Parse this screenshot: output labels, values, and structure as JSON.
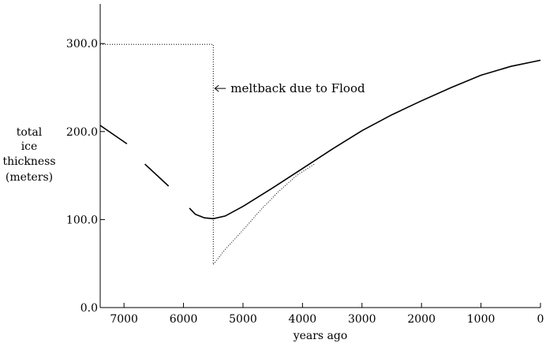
{
  "chart_data": {
    "type": "line",
    "title": "",
    "xlabel": "years ago",
    "ylabel_lines": [
      "total",
      "ice",
      "thickness",
      "(meters)"
    ],
    "xlim": [
      7400,
      0
    ],
    "ylim": [
      0,
      345
    ],
    "x_ticks": [
      7000,
      6000,
      5000,
      4000,
      3000,
      2000,
      1000,
      0
    ],
    "x_tick_labels": [
      "7000",
      "6000",
      "5000",
      "4000",
      "3000",
      "2000",
      "1000",
      "0"
    ],
    "y_ticks": [
      0,
      100,
      200,
      300
    ],
    "y_tick_labels": [
      "0.0",
      "100.0",
      "200.0",
      "300.0"
    ],
    "grid": false,
    "series": [
      {
        "style": "solid",
        "segments": [
          [
            [
              7400,
              207
            ],
            [
              6950,
              186
            ]
          ],
          [
            [
              6650,
              163
            ],
            [
              6250,
              138
            ]
          ],
          [
            [
              5900,
              113
            ],
            [
              5800,
              106
            ],
            [
              5650,
              102
            ],
            [
              5500,
              101
            ],
            [
              5300,
              104
            ],
            [
              5000,
              115
            ],
            [
              4500,
              136
            ],
            [
              4000,
              158
            ],
            [
              3500,
              180
            ],
            [
              3000,
              201
            ],
            [
              2500,
              219
            ],
            [
              2000,
              235
            ],
            [
              1500,
              250
            ],
            [
              1000,
              264
            ],
            [
              500,
              274
            ],
            [
              0,
              281
            ]
          ]
        ]
      },
      {
        "style": "dotted",
        "segments": [
          [
            [
              7400,
              299
            ],
            [
              5500,
              299
            ],
            [
              5500,
              49
            ]
          ],
          [
            [
              5500,
              49
            ],
            [
              5300,
              66
            ],
            [
              5000,
              88
            ],
            [
              4700,
              111
            ],
            [
              4400,
              132
            ],
            [
              4100,
              150
            ],
            [
              3800,
              163
            ]
          ]
        ]
      }
    ],
    "annotations": [
      {
        "text": "meltback due to Flood",
        "x": 5500,
        "y": 249
      }
    ]
  }
}
